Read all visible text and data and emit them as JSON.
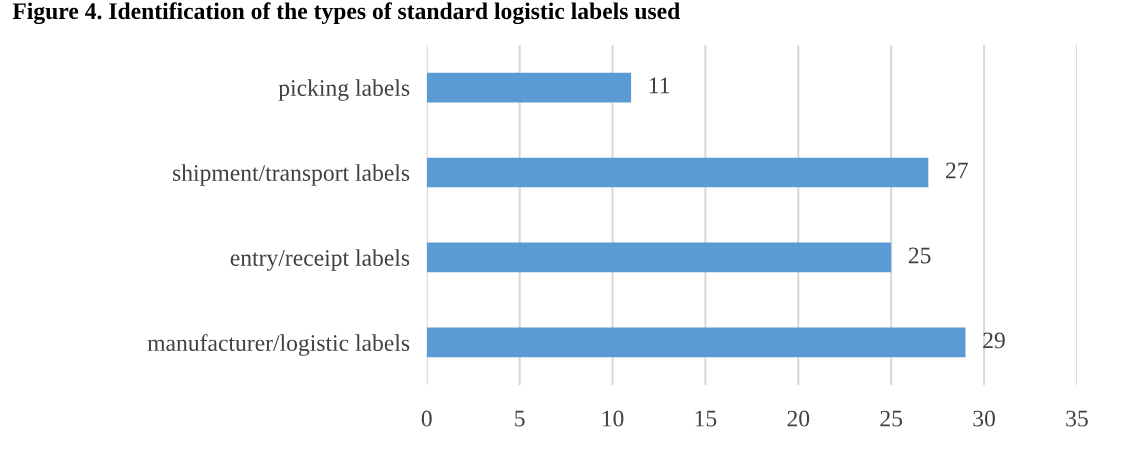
{
  "chart_data": {
    "type": "bar",
    "orientation": "horizontal",
    "title": "Figure 4. Identification of the types of standard logistic labels used",
    "categories": [
      "picking labels",
      "shipment/transport labels",
      "entry/receipt labels",
      "manufacturer/logistic labels"
    ],
    "values": [
      11,
      27,
      25,
      29
    ],
    "color": "#5b9bd5",
    "data_labels": true,
    "xlim": [
      0,
      35
    ],
    "xticks": [
      0,
      5,
      10,
      15,
      20,
      25,
      30,
      35
    ],
    "grid": "x"
  }
}
